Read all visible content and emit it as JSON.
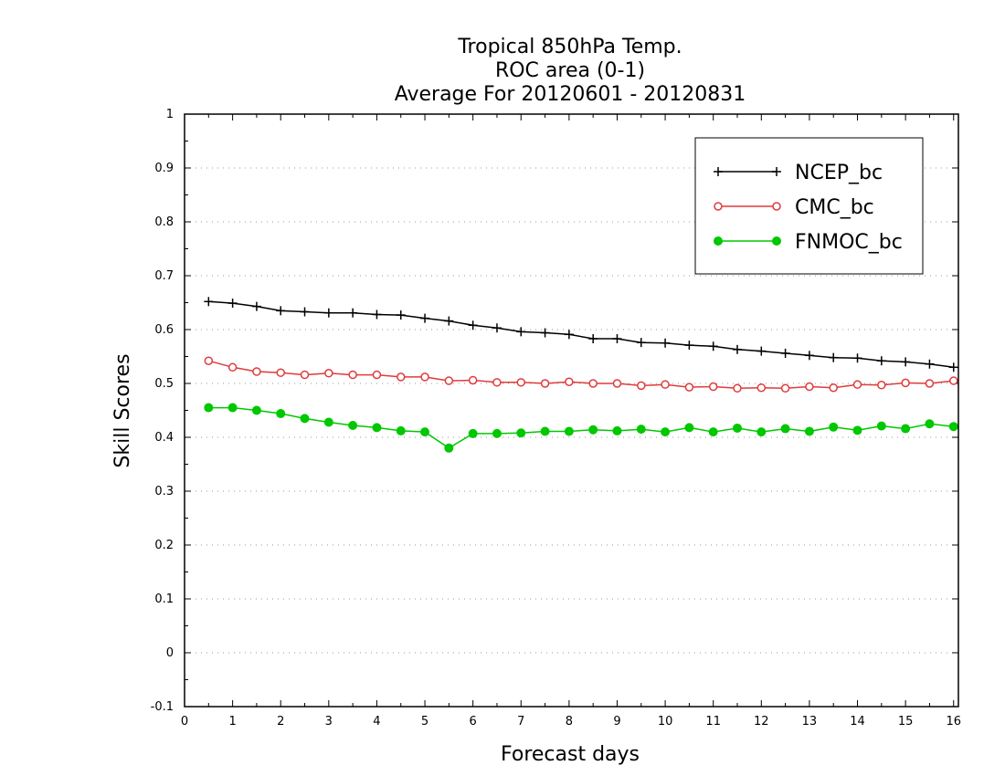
{
  "chart_data": {
    "type": "line",
    "title": [
      "Tropical 850hPa Temp.",
      "ROC area (0-1)",
      "Average For 20120601 - 20120831"
    ],
    "xlabel": "Forecast days",
    "ylabel": "Skill Scores",
    "xlim": [
      0,
      16.1
    ],
    "ylim": [
      -0.1,
      1
    ],
    "xticks": [
      "0",
      "1",
      "2",
      "3",
      "4",
      "5",
      "6",
      "7",
      "8",
      "9",
      "10",
      "11",
      "12",
      "13",
      "14",
      "15",
      "16"
    ],
    "yticks": [
      "-0.1",
      "0",
      "0.1",
      "0.2",
      "0.3",
      "0.4",
      "0.5",
      "0.6",
      "0.7",
      "0.8",
      "0.9",
      "1"
    ],
    "grid": "horizontal dotted",
    "legend_position": "top-right",
    "x": [
      0.5,
      1,
      1.5,
      2,
      2.5,
      3,
      3.5,
      4,
      4.5,
      5,
      5.5,
      6,
      6.5,
      7,
      7.5,
      8,
      8.5,
      9,
      9.5,
      10,
      10.5,
      11,
      11.5,
      12,
      12.5,
      13,
      13.5,
      14,
      14.5,
      15,
      15.5,
      16
    ],
    "series": [
      {
        "name": "NCEP_bc",
        "color": "#000000",
        "marker": "plus",
        "values": [
          0.652,
          0.649,
          0.643,
          0.635,
          0.633,
          0.631,
          0.631,
          0.628,
          0.627,
          0.621,
          0.616,
          0.608,
          0.603,
          0.596,
          0.594,
          0.591,
          0.583,
          0.583,
          0.576,
          0.575,
          0.571,
          0.569,
          0.563,
          0.56,
          0.556,
          0.552,
          0.548,
          0.547,
          0.542,
          0.54,
          0.536,
          0.53
        ]
      },
      {
        "name": "CMC_bc",
        "color": "#e03a3a",
        "marker": "open-circle",
        "values": [
          0.542,
          0.53,
          0.522,
          0.52,
          0.516,
          0.519,
          0.516,
          0.516,
          0.512,
          0.512,
          0.505,
          0.506,
          0.502,
          0.502,
          0.5,
          0.503,
          0.5,
          0.5,
          0.496,
          0.498,
          0.493,
          0.494,
          0.491,
          0.492,
          0.491,
          0.494,
          0.492,
          0.498,
          0.497,
          0.501,
          0.5,
          0.505
        ]
      },
      {
        "name": "FNMOC_bc",
        "color": "#00c800",
        "marker": "filled-circle",
        "values": [
          0.455,
          0.455,
          0.45,
          0.444,
          0.435,
          0.428,
          0.422,
          0.418,
          0.412,
          0.41,
          0.38,
          0.407,
          0.407,
          0.408,
          0.411,
          0.411,
          0.414,
          0.412,
          0.415,
          0.41,
          0.418,
          0.41,
          0.417,
          0.41,
          0.416,
          0.411,
          0.419,
          0.413,
          0.421,
          0.416,
          0.425,
          0.42
        ]
      }
    ]
  }
}
